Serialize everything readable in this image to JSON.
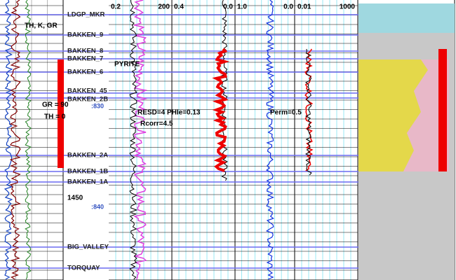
{
  "track_1": {
    "label": "TH, K, GR"
  },
  "scales": [
    {
      "left": "0.2",
      "right": "200"
    },
    {
      "left": "0.4",
      "right": "0.0"
    },
    {
      "left": "1.0",
      "right": "0.0"
    },
    {
      "left": "0.01",
      "right": "1000"
    }
  ],
  "markers": [
    "LDGP_MKR",
    "BAKKEN_9",
    "BAKKEN_8",
    "BAKKEN_7",
    "BAKKEN_6",
    "BAKKEN_45",
    "BAKKEN_2B",
    "BAKKEN_2A",
    "BAKKEN_1B",
    "BAKKEN_1A",
    "BIG_VALLEY",
    "TORQUAY"
  ],
  "depth_labels": {
    "depth": "1450",
    "ticks": [
      ":830",
      ":840"
    ]
  },
  "annotations": {
    "pyrite": "PYRITE",
    "gr": "GR = 90",
    "th": "TH = 0",
    "resd": "RESD=4 PHIe=0.13",
    "rcorr": "Rcorr=4.5",
    "perm": "Perm=0.5"
  }
}
